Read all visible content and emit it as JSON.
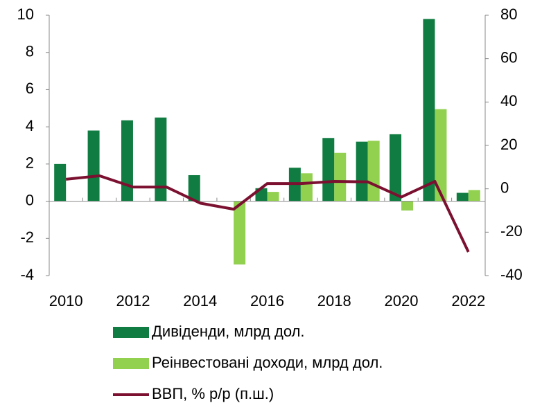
{
  "chart_data": {
    "type": "bar",
    "categories": [
      "2010",
      null,
      "2012",
      null,
      "2014",
      null,
      "2016",
      null,
      "2018",
      null,
      "2020",
      null,
      "2022"
    ],
    "series": [
      {
        "name": "Дивіденди, млрд дол.",
        "color": "#107c41",
        "values": [
          2.0,
          3.8,
          4.35,
          4.5,
          1.4,
          0,
          0.7,
          1.8,
          3.4,
          3.2,
          3.6,
          9.8,
          0.45
        ]
      },
      {
        "name": "Реінвестовані доходи, млрд дол.",
        "color": "#92d050",
        "values": [
          0,
          0,
          0,
          0,
          0,
          -3.4,
          0.5,
          1.5,
          2.6,
          3.25,
          -0.5,
          4.95,
          0.6
        ]
      },
      {
        "name": "ВВП, % р/р (п.ш.)",
        "color": "#7b1030",
        "type": "line",
        "axis": "y2",
        "values": [
          4.4,
          6.0,
          0.8,
          0.8,
          -6.6,
          -9.4,
          2.4,
          2.4,
          3.4,
          3.2,
          -3.8,
          3.4,
          -29.1
        ]
      }
    ],
    "ylim": [
      -4,
      10
    ],
    "yticks": [
      -4,
      -2,
      0,
      2,
      4,
      6,
      8,
      10
    ],
    "y2lim": [
      -40,
      80
    ],
    "y2ticks": [
      -40,
      -20,
      0,
      20,
      40,
      60,
      80
    ],
    "legend": "bottom"
  }
}
